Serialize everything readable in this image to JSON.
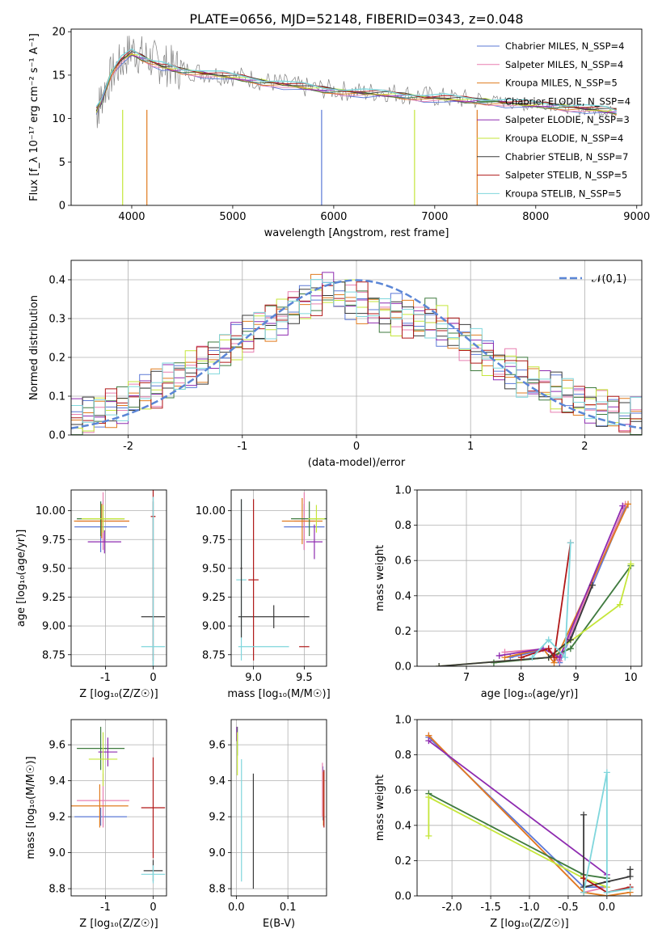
{
  "figure_title": "PLATE=0656, MJD=52148, FIBERID=0343, z=0.048",
  "colors": [
    "#5b78d6",
    "#e87fb0",
    "#e07b1f",
    "#3e7a3e",
    "#8e2bb0",
    "#c5e63a",
    "#3a3a3a",
    "#b01818",
    "#7fd6dc"
  ],
  "chart_data": [
    {
      "id": "spectrum",
      "type": "line",
      "title": "PLATE=0656, MJD=52148, FIBERID=0343, z=0.048",
      "xlabel": "wavelength [Angstrom, rest frame]",
      "ylabel": "Flux [f_λ 10⁻¹⁷ erg cm⁻² s⁻¹ A⁻¹]",
      "xlim": [
        3400,
        9050
      ],
      "ylim": [
        0,
        20.3
      ],
      "xticks": [
        4000,
        5000,
        6000,
        7000,
        8000,
        9000
      ],
      "yticks": [
        0,
        5,
        10,
        15,
        20
      ],
      "grid": false,
      "legend_position": "upper-right",
      "data_spectrum": {
        "x": [
          3650,
          3700,
          3800,
          3900,
          4000,
          4100,
          4200,
          4300,
          4400,
          4500,
          4700,
          4900,
          5100,
          5300,
          5500,
          5700,
          5900,
          6100,
          6300,
          6500,
          6700,
          6900,
          7100,
          7300,
          7500,
          7700,
          7900,
          8100,
          8300,
          8500,
          8700,
          8800
        ],
        "y": [
          10.5,
          12.5,
          15.0,
          16.5,
          18.0,
          17.2,
          16.8,
          16.2,
          16.0,
          15.6,
          15.3,
          15.0,
          14.8,
          14.3,
          14.0,
          13.6,
          13.4,
          13.2,
          13.0,
          13.1,
          12.8,
          12.6,
          12.4,
          12.2,
          12.1,
          11.9,
          11.5,
          11.7,
          11.3,
          11.0,
          10.9,
          10.7
        ]
      },
      "model_spectrum": {
        "x": [
          3650,
          3700,
          3800,
          3900,
          4000,
          4100,
          4200,
          4300,
          4400,
          4500,
          4700,
          4900,
          5100,
          5300,
          5500,
          5700,
          5900,
          6100,
          6300,
          6500,
          6700,
          6900,
          7100,
          7300,
          7500,
          7700,
          7900,
          8100,
          8300,
          8500,
          8700,
          8800
        ],
        "y": [
          10.8,
          12.0,
          15.3,
          16.8,
          17.5,
          17.0,
          16.5,
          16.0,
          15.7,
          15.5,
          15.2,
          14.9,
          14.6,
          14.2,
          13.9,
          13.6,
          13.3,
          13.1,
          12.9,
          12.8,
          12.6,
          12.4,
          12.3,
          12.1,
          12.0,
          11.8,
          11.6,
          11.5,
          11.3,
          11.1,
          10.9,
          10.8
        ]
      },
      "series": [
        {
          "name": "Chabrier MILES, N_SSP=4"
        },
        {
          "name": "Salpeter MILES, N_SSP=4"
        },
        {
          "name": "Kroupa MILES, N_SSP=5"
        },
        {
          "name": "Chabrier ELODIE, N_SSP=4"
        },
        {
          "name": "Salpeter ELODIE, N_SSP=3"
        },
        {
          "name": "Kroupa ELODIE, N_SSP=4"
        },
        {
          "name": "Chabrier STELIB, N_SSP=7"
        },
        {
          "name": "Salpeter STELIB, N_SSP=5"
        },
        {
          "name": "Kroupa STELIB, N_SSP=5"
        }
      ],
      "dropouts": [
        {
          "x": 3910,
          "series": 5
        },
        {
          "x": 4150,
          "series": 2
        },
        {
          "x": 5880,
          "series": 0
        },
        {
          "x": 6800,
          "series": 5
        },
        {
          "x": 7420,
          "series": 2
        }
      ]
    },
    {
      "id": "residuals",
      "type": "line",
      "xlabel": "(data-model)/error",
      "ylabel": "Normed distribution",
      "xlim": [
        -2.5,
        2.5
      ],
      "ylim": [
        0,
        0.45
      ],
      "xticks": [
        -2,
        -1,
        0,
        1,
        2
      ],
      "yticks": [
        0.0,
        0.1,
        0.2,
        0.3,
        0.4
      ],
      "grid": true,
      "legend_position": "upper-right",
      "reference_curve": {
        "name": "𝒩(0,1)",
        "mean": 0,
        "sd": 1
      },
      "bin_edges": [
        -2.5,
        -2.4,
        -2.3,
        -2.2,
        -2.1,
        -2.0,
        -1.9,
        -1.8,
        -1.7,
        -1.6,
        -1.5,
        -1.4,
        -1.3,
        -1.2,
        -1.1,
        -1.0,
        -0.9,
        -0.8,
        -0.7,
        -0.6,
        -0.5,
        -0.4,
        -0.3,
        -0.2,
        -0.1,
        0.0,
        0.1,
        0.2,
        0.3,
        0.4,
        0.5,
        0.6,
        0.7,
        0.8,
        0.9,
        1.0,
        1.1,
        1.2,
        1.3,
        1.4,
        1.5,
        1.6,
        1.7,
        1.8,
        1.9,
        2.0,
        2.1,
        2.2,
        2.3,
        2.4,
        2.5
      ],
      "base_density": [
        0.04,
        0.05,
        0.06,
        0.07,
        0.08,
        0.1,
        0.11,
        0.12,
        0.14,
        0.15,
        0.17,
        0.18,
        0.2,
        0.22,
        0.24,
        0.26,
        0.28,
        0.29,
        0.31,
        0.33,
        0.34,
        0.36,
        0.37,
        0.36,
        0.35,
        0.34,
        0.33,
        0.31,
        0.31,
        0.3,
        0.29,
        0.3,
        0.28,
        0.26,
        0.24,
        0.22,
        0.2,
        0.18,
        0.17,
        0.15,
        0.14,
        0.12,
        0.11,
        0.1,
        0.09,
        0.08,
        0.07,
        0.06,
        0.05,
        0.05
      ]
    },
    {
      "id": "age-vs-Z",
      "type": "scatter",
      "xlabel": "Z [log₁₀(Z/Z☉)]",
      "ylabel": "age  [log₁₀(age/yr)]",
      "xlim": [
        -1.72,
        0.28
      ],
      "ylim": [
        8.65,
        10.18
      ],
      "xticks": [
        -1,
        0
      ],
      "yticks": [
        8.75,
        9.0,
        9.25,
        9.5,
        9.75,
        10.0
      ],
      "grid": true,
      "points": [
        {
          "s": 0,
          "x": -1.1,
          "y": 9.86,
          "xerr": 0.55,
          "yerr": 0.22
        },
        {
          "s": 1,
          "x": -1.05,
          "y": 9.91,
          "xerr": 0.55,
          "yerr": 0.25
        },
        {
          "s": 2,
          "x": -1.08,
          "y": 9.91,
          "xerr": 0.58,
          "yerr": 0.15
        },
        {
          "s": 3,
          "x": -1.1,
          "y": 9.93,
          "xerr": 0.5,
          "yerr": 0.15
        },
        {
          "s": 4,
          "x": -1.02,
          "y": 9.73,
          "xerr": 0.35,
          "yerr": 0.1
        },
        {
          "s": 5,
          "x": -1.05,
          "y": 9.93,
          "xerr": 0.45,
          "yerr": 0.12
        },
        {
          "s": 6,
          "x": 0.0,
          "y": 9.08,
          "xerr": 0.25,
          "yerr": 1.0
        },
        {
          "s": 7,
          "x": 0.0,
          "y": 9.95,
          "xerr": 0.05,
          "yerr": 1.25
        },
        {
          "s": 8,
          "x": 0.0,
          "y": 8.82,
          "xerr": 0.25,
          "yerr": 1.3
        }
      ]
    },
    {
      "id": "age-vs-mass",
      "type": "scatter",
      "xlabel": "mass [log₁₀(M/M☉)]",
      "ylabel": "",
      "xlim": [
        8.78,
        9.72
      ],
      "ylim": [
        8.65,
        10.18
      ],
      "xticks": [
        9.0,
        9.5
      ],
      "yticks": [
        8.75,
        9.0,
        9.25,
        9.5,
        9.75,
        10.0
      ],
      "grid": true,
      "points": [
        {
          "s": 0,
          "x": 9.5,
          "y": 9.86,
          "xerr": 0.2,
          "yerr": 0.2
        },
        {
          "s": 1,
          "x": 9.5,
          "y": 9.91,
          "xerr": 0.1,
          "yerr": 0.25
        },
        {
          "s": 2,
          "x": 9.48,
          "y": 9.91,
          "xerr": 0.2,
          "yerr": 0.2
        },
        {
          "s": 3,
          "x": 9.55,
          "y": 9.93,
          "xerr": 0.18,
          "yerr": 0.15
        },
        {
          "s": 4,
          "x": 9.6,
          "y": 9.73,
          "xerr": 0.08,
          "yerr": 0.15
        },
        {
          "s": 5,
          "x": 9.62,
          "y": 9.93,
          "xerr": 0.08,
          "yerr": 0.12
        },
        {
          "s": 6,
          "x": 9.2,
          "y": 9.08,
          "xerr": 0.35,
          "yerr": 0.1
        },
        {
          "s": 7,
          "x": 9.0,
          "y": 9.4,
          "xerr": 0.05,
          "yerr": 0.7
        },
        {
          "s": 8,
          "x": 8.88,
          "y": 9.4,
          "xerr": 0.05,
          "yerr": 0.7
        },
        {
          "s": 7,
          "x": 9.5,
          "y": 8.82,
          "xerr": 0.05,
          "yerr": 0.0
        },
        {
          "s": 6,
          "x": 8.88,
          "y": 9.5,
          "xerr": 0.01,
          "yerr": 0.6
        },
        {
          "s": 8,
          "x": 9.1,
          "y": 8.82,
          "xerr": 0.25,
          "yerr": 0.0
        }
      ]
    },
    {
      "id": "weight-vs-age",
      "type": "line",
      "xlabel": "age  [log₁₀(age/yr)]",
      "ylabel": "mass weight",
      "xlim": [
        6.1,
        10.2
      ],
      "ylim": [
        0.0,
        1.0
      ],
      "xticks": [
        7,
        8,
        9,
        10
      ],
      "yticks": [
        0.0,
        0.2,
        0.4,
        0.6,
        0.8,
        1.0
      ],
      "grid": true,
      "lines": [
        {
          "s": 0,
          "x": [
            7.8,
            8.5,
            8.7,
            9.9
          ],
          "y": [
            0.05,
            0.1,
            0.02,
            0.9
          ]
        },
        {
          "s": 1,
          "x": [
            7.7,
            8.5,
            8.7,
            9.9
          ],
          "y": [
            0.08,
            0.1,
            0.03,
            0.92
          ]
        },
        {
          "s": 2,
          "x": [
            7.7,
            8.4,
            8.6,
            9.95
          ],
          "y": [
            0.05,
            0.1,
            0.02,
            0.92
          ]
        },
        {
          "s": 3,
          "x": [
            7.5,
            8.5,
            8.9,
            10.0
          ],
          "y": [
            0.02,
            0.05,
            0.1,
            0.57
          ]
        },
        {
          "s": 4,
          "x": [
            7.6,
            8.4,
            8.7,
            9.85
          ],
          "y": [
            0.06,
            0.1,
            0.05,
            0.91
          ]
        },
        {
          "s": 5,
          "x": [
            6.5,
            8.5,
            9.8,
            10.0
          ],
          "y": [
            0.0,
            0.05,
            0.35,
            0.58
          ]
        },
        {
          "s": 6,
          "x": [
            6.5,
            8.5,
            8.9,
            9.3
          ],
          "y": [
            0.0,
            0.05,
            0.15,
            0.46
          ]
        },
        {
          "s": 7,
          "x": [
            8.0,
            8.5,
            8.6,
            8.9
          ],
          "y": [
            0.05,
            0.1,
            0.05,
            0.7
          ]
        },
        {
          "s": 8,
          "x": [
            8.2,
            8.5,
            8.8,
            8.9
          ],
          "y": [
            0.05,
            0.15,
            0.05,
            0.7
          ]
        }
      ]
    },
    {
      "id": "mass-vs-Z",
      "type": "scatter",
      "xlabel": "Z [log₁₀(Z/Z☉)]",
      "ylabel": "mass [log₁₀(M/M☉)]",
      "xlim": [
        -1.72,
        0.28
      ],
      "ylim": [
        8.76,
        9.74
      ],
      "xticks": [
        -1,
        0
      ],
      "yticks": [
        8.8,
        9.0,
        9.2,
        9.4,
        9.6
      ],
      "grid": true,
      "points": [
        {
          "s": 0,
          "x": -1.1,
          "y": 9.2,
          "xerr": 0.55,
          "yerr": 0.05
        },
        {
          "s": 1,
          "x": -1.05,
          "y": 9.29,
          "xerr": 0.55,
          "yerr": 0.15
        },
        {
          "s": 2,
          "x": -1.12,
          "y": 9.26,
          "xerr": 0.6,
          "yerr": 0.12
        },
        {
          "s": 3,
          "x": -1.1,
          "y": 9.58,
          "xerr": 0.5,
          "yerr": 0.12
        },
        {
          "s": 4,
          "x": -0.95,
          "y": 9.56,
          "xerr": 0.2,
          "yerr": 0.08
        },
        {
          "s": 5,
          "x": -1.05,
          "y": 9.52,
          "xerr": 0.3,
          "yerr": 0.15
        },
        {
          "s": 6,
          "x": 0.0,
          "y": 8.9,
          "xerr": 0.2,
          "yerr": 0.06
        },
        {
          "s": 7,
          "x": 0.0,
          "y": 9.25,
          "xerr": 0.25,
          "yerr": 0.28
        },
        {
          "s": 8,
          "x": 0.0,
          "y": 8.88,
          "xerr": 0.25,
          "yerr": 0.05
        }
      ]
    },
    {
      "id": "mass-vs-EBV",
      "type": "scatter",
      "xlabel": "E(B-V)",
      "ylabel": "",
      "xlim": [
        -0.01,
        0.175
      ],
      "ylim": [
        8.76,
        9.74
      ],
      "xticks": [
        0.0,
        0.1
      ],
      "yticks": [
        8.8,
        9.0,
        9.2,
        9.4,
        9.6
      ],
      "grid": true,
      "points": [
        {
          "s": 0,
          "x": 0.168,
          "y": 9.33,
          "xerr": 0.0,
          "yerr": 0.15
        },
        {
          "s": 1,
          "x": 0.167,
          "y": 9.35,
          "xerr": 0.0,
          "yerr": 0.15
        },
        {
          "s": 2,
          "x": 0.169,
          "y": 9.3,
          "xerr": 0.0,
          "yerr": 0.15
        },
        {
          "s": 3,
          "x": 0.002,
          "y": 9.62,
          "xerr": 0.0,
          "yerr": 0.08
        },
        {
          "s": 4,
          "x": 0.001,
          "y": 9.66,
          "xerr": 0.0,
          "yerr": 0.04
        },
        {
          "s": 5,
          "x": 0.002,
          "y": 9.55,
          "xerr": 0.0,
          "yerr": 0.12
        },
        {
          "s": 6,
          "x": 0.033,
          "y": 9.12,
          "xerr": 0.0,
          "yerr": 0.32
        },
        {
          "s": 7,
          "x": 0.17,
          "y": 9.3,
          "xerr": 0.0,
          "yerr": 0.16
        },
        {
          "s": 8,
          "x": 0.01,
          "y": 9.18,
          "xerr": 0.0,
          "yerr": 0.34
        }
      ]
    },
    {
      "id": "weight-vs-Z",
      "type": "line",
      "xlabel": "Z [log₁₀(Z/Z☉)]",
      "ylabel": "mass weight",
      "xlim": [
        -2.45,
        0.45
      ],
      "ylim": [
        0.0,
        1.0
      ],
      "xticks": [
        -2.0,
        -1.5,
        -1.0,
        -0.5,
        0.0
      ],
      "yticks": [
        0.0,
        0.2,
        0.4,
        0.6,
        0.8,
        1.0
      ],
      "grid": true,
      "lines": [
        {
          "s": 0,
          "x": [
            -2.3,
            -0.3,
            0.0
          ],
          "y": [
            0.9,
            0.05,
            0.05
          ]
        },
        {
          "s": 1,
          "x": [
            -2.3,
            -0.3,
            0.0
          ],
          "y": [
            0.91,
            0.02,
            0.05
          ]
        },
        {
          "s": 2,
          "x": [
            -2.3,
            -0.3,
            0.0,
            0.3
          ],
          "y": [
            0.91,
            0.02,
            0.0,
            0.02
          ]
        },
        {
          "s": 3,
          "x": [
            -2.3,
            -0.3,
            0.0
          ],
          "y": [
            0.58,
            0.12,
            0.1
          ]
        },
        {
          "s": 4,
          "x": [
            -2.3,
            0.0
          ],
          "y": [
            0.88,
            0.12
          ]
        },
        {
          "s": 5,
          "x": [
            -2.3,
            -2.3,
            -0.3,
            0.0
          ],
          "y": [
            0.34,
            0.56,
            0.1,
            0.05
          ]
        },
        {
          "s": 6,
          "x": [
            -0.3,
            -0.3,
            0.0,
            0.3,
            0.3
          ],
          "y": [
            0.46,
            0.05,
            0.08,
            0.11,
            0.15
          ]
        },
        {
          "s": 7,
          "x": [
            -0.3,
            0.0,
            0.3
          ],
          "y": [
            0.1,
            0.02,
            0.05
          ]
        },
        {
          "s": 8,
          "x": [
            -0.3,
            0.0,
            0.0,
            0.3
          ],
          "y": [
            0.02,
            0.7,
            0.02,
            0.04
          ]
        }
      ]
    }
  ]
}
